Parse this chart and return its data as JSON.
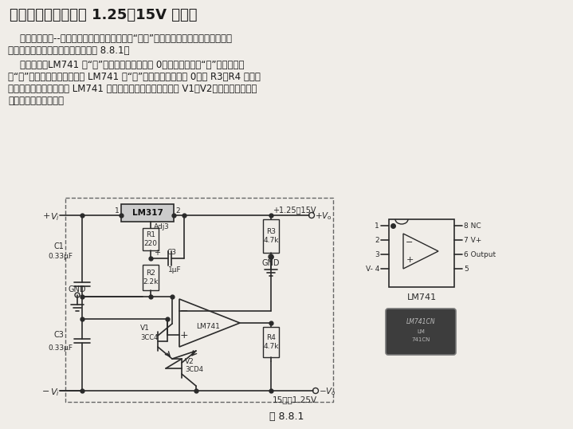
{
  "title": "一、输出电压绝对值 1.25～15V 的设计",
  "para1_l1": "    这款电路仅用--个电位器即能实现正、负电压“同步”调节，即电路的负电压输出跟踪",
  "para1_l2": "正电压输出的变化。电路原理图见图 8.8.1。",
  "para2_l1": "    由图可见，LM741 的“＋”输入端接地，电势为 0，因运算放大器“－”输入端电势",
  "para2_l2": "与“＋”输入端电势接近，所以 LM741 的“－”输入端电势近似为 0。由 R3、R4 构成等",
  "para2_l3": "值分压电路，中点电压经 LM741 反相放大后驱动负电压调整管 V1、V2，从而保证输出电",
  "para2_l4": "压正、负幅度的平衡。",
  "fig_caption": "图 8.8.1",
  "bg_color": "#f0ede8",
  "text_color": "#1a1a1a",
  "circuit_color": "#2a2a2a"
}
